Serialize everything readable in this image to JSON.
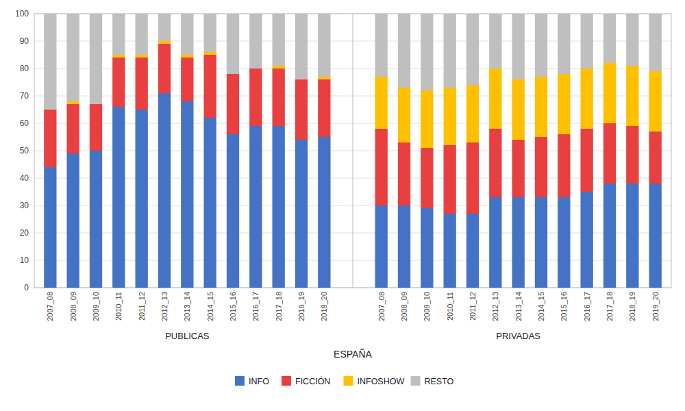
{
  "chart_data": {
    "type": "bar",
    "stacked": true,
    "categories": [
      "2007_08",
      "2008_09",
      "2009_10",
      "2010_11",
      "2011_12",
      "2012_13",
      "2013_14",
      "2014_15",
      "2015_16",
      "2016_17",
      "2017_18",
      "2018_19",
      "2019_20",
      "2007_08",
      "2008_09",
      "2009_10",
      "2010_11",
      "2011_12",
      "2012_13",
      "2013_14",
      "2014_15",
      "2015_16",
      "2016_17",
      "2017_18",
      "2018_19",
      "2019_20"
    ],
    "series": [
      {
        "name": "INFO",
        "color": "#4472c4",
        "values": [
          44,
          49,
          50,
          66,
          65,
          71,
          68,
          62,
          56,
          59,
          59,
          54,
          55,
          30,
          30,
          29,
          27,
          27,
          33,
          33,
          33,
          33,
          35,
          38,
          38,
          38
        ]
      },
      {
        "name": "FICCIÓN",
        "color": "#e84040",
        "values": [
          21,
          18,
          17,
          18,
          19,
          18,
          16,
          23,
          22,
          21,
          21,
          22,
          21,
          28,
          23,
          22,
          25,
          26,
          25,
          21,
          22,
          23,
          23,
          22,
          21,
          19
        ]
      },
      {
        "name": "INFOSHOW",
        "color": "#ffc000",
        "values": [
          0,
          1,
          0,
          1,
          1,
          1,
          1,
          1,
          0,
          0,
          1,
          0,
          1,
          19,
          20,
          21,
          21,
          21,
          22,
          22,
          22,
          22,
          22,
          22,
          22,
          22
        ]
      },
      {
        "name": "RESTO",
        "color": "#bfbfbf",
        "values": [
          35,
          32,
          33,
          15,
          15,
          10,
          15,
          14,
          22,
          20,
          19,
          24,
          23,
          23,
          27,
          28,
          27,
          26,
          20,
          24,
          23,
          22,
          20,
          18,
          19,
          21
        ]
      }
    ],
    "annotations": [
      "PUBLICAS",
      "PRIVADAS"
    ],
    "xlabel": "ESPAÑA",
    "ylim": [
      0,
      100
    ],
    "yticks": [
      0,
      10,
      20,
      30,
      40,
      50,
      60,
      70,
      80,
      90,
      100
    ],
    "grid": true,
    "legend": "bottom"
  }
}
